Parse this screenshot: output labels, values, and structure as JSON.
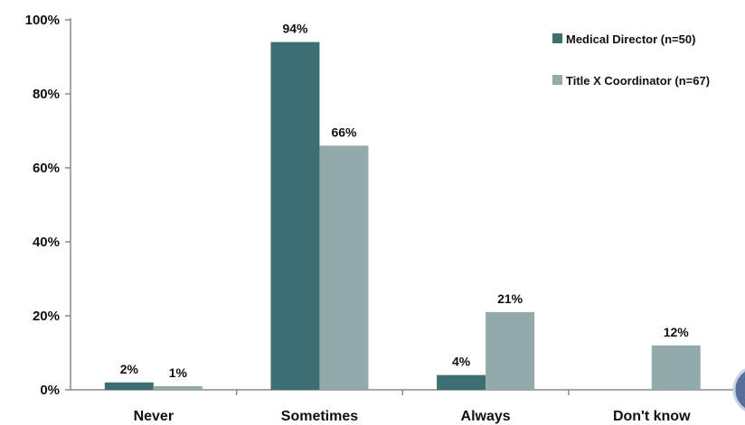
{
  "chart_data": {
    "type": "bar",
    "categories": [
      "Never",
      "Sometimes",
      "Always",
      "Don't know"
    ],
    "series": [
      {
        "name": "Medical Director (n=50)",
        "values": [
          2,
          94,
          4,
          null
        ],
        "labels": [
          "2%",
          "94%",
          "4%",
          ""
        ],
        "color": "#3d7073"
      },
      {
        "name": "Title X Coordinator (n=67)",
        "values": [
          1,
          66,
          21,
          12
        ],
        "labels": [
          "1%",
          "66%",
          "21%",
          "12%"
        ],
        "color": "#93aaaa"
      }
    ],
    "yticks": [
      {
        "value": 0,
        "label": "0%"
      },
      {
        "value": 20,
        "label": "20%"
      },
      {
        "value": 40,
        "label": "40%"
      },
      {
        "value": 60,
        "label": "60%"
      },
      {
        "value": 80,
        "label": "80%"
      },
      {
        "value": 100,
        "label": "100%"
      }
    ],
    "ylim": [
      0,
      100
    ],
    "title": "",
    "xlabel": "",
    "ylabel": "",
    "grid": false,
    "legend_position": "top-right",
    "decoration_color": "#5a6e9c"
  }
}
